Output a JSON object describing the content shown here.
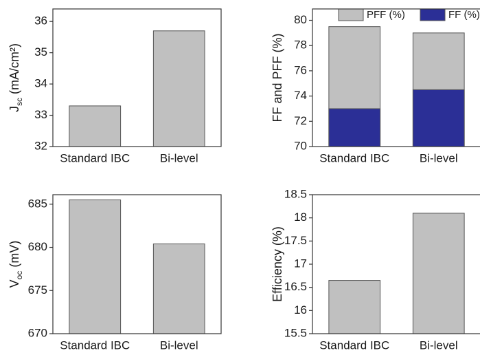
{
  "chart_data": [
    {
      "type": "bar",
      "ylabel": {
        "text": "J",
        "sub": "sc",
        "rest": " (mA/cm²)"
      },
      "categories": [
        "Standard IBC",
        "Bi-level"
      ],
      "values": [
        33.3,
        35.7
      ],
      "color": "#c0c0c0",
      "ylim": [
        32,
        36.4
      ],
      "yticks": [
        32,
        33,
        34,
        35,
        36
      ]
    },
    {
      "type": "bar",
      "ylabel": "FF and PFF (%)",
      "categories": [
        "Standard IBC",
        "Bi-level"
      ],
      "series": [
        {
          "name": "PFF (%)",
          "color": "#c0c0c0",
          "values": [
            79.5,
            79.0
          ]
        },
        {
          "name": "FF (%)",
          "color": "#2b2f96",
          "values": [
            73.0,
            74.5
          ]
        }
      ],
      "legend": "top",
      "ylim": [
        70,
        80.9
      ],
      "yticks": [
        70,
        72,
        74,
        76,
        78,
        80
      ]
    },
    {
      "type": "bar",
      "ylabel": {
        "text": "V",
        "sub": "oc",
        "rest": " (mV)"
      },
      "categories": [
        "Standard IBC",
        "Bi-level"
      ],
      "values": [
        685.5,
        680.4
      ],
      "color": "#c0c0c0",
      "ylim": [
        670,
        686.1
      ],
      "yticks": [
        670,
        675,
        680,
        685
      ]
    },
    {
      "type": "bar",
      "ylabel": "Efficiency (%)",
      "categories": [
        "Standard IBC",
        "Bi-level"
      ],
      "values": [
        16.65,
        18.1
      ],
      "color": "#c0c0c0",
      "ylim": [
        15.5,
        18.5
      ],
      "yticks": [
        15.5,
        16.0,
        16.5,
        17.0,
        17.5,
        18.0,
        18.5
      ]
    }
  ]
}
